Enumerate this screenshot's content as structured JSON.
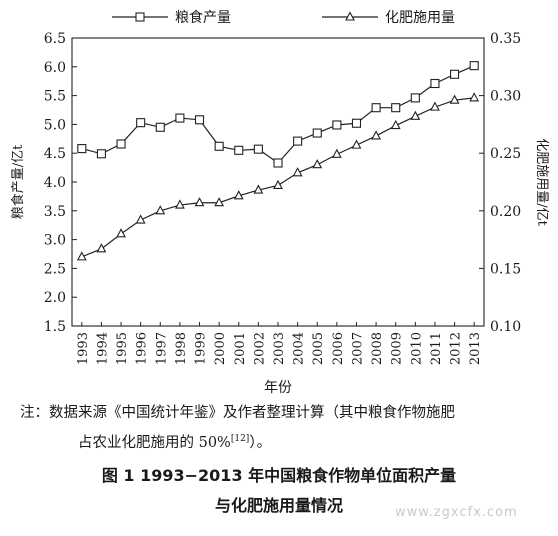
{
  "chart_data": {
    "type": "line",
    "categories": [
      "1993",
      "1994",
      "1995",
      "1996",
      "1997",
      "1998",
      "1999",
      "2000",
      "2001",
      "2002",
      "2003",
      "2004",
      "2005",
      "2006",
      "2007",
      "2008",
      "2009",
      "2010",
      "2011",
      "2012",
      "2013"
    ],
    "series": [
      {
        "name": "粮食产量",
        "axis": "left",
        "marker": "square",
        "values": [
          4.58,
          4.49,
          4.66,
          5.03,
          4.95,
          5.11,
          5.08,
          4.62,
          4.55,
          4.57,
          4.33,
          4.71,
          4.85,
          4.99,
          5.02,
          5.29,
          5.29,
          5.46,
          5.71,
          5.87,
          6.02
        ]
      },
      {
        "name": "化肥施用量",
        "axis": "right",
        "marker": "triangle",
        "values": [
          0.16,
          0.167,
          0.18,
          0.192,
          0.2,
          0.205,
          0.207,
          0.207,
          0.213,
          0.218,
          0.222,
          0.233,
          0.24,
          0.249,
          0.257,
          0.265,
          0.274,
          0.282,
          0.29,
          0.296,
          0.298
        ]
      }
    ],
    "y_left": {
      "label": "粮食产量/亿t",
      "min": 1.5,
      "max": 6.5,
      "ticks": [
        "1.5",
        "2.0",
        "2.5",
        "3.0",
        "3.5",
        "4.0",
        "4.5",
        "5.0",
        "5.5",
        "6.0",
        "6.5"
      ]
    },
    "y_right": {
      "label": "化肥施用量/亿t",
      "min": 0.1,
      "max": 0.35,
      "ticks": [
        "0.10",
        "0.15",
        "0.20",
        "0.25",
        "0.30",
        "0.35"
      ]
    },
    "xlabel": "年份",
    "legend_position": "top",
    "grid": false
  },
  "note": {
    "line1": "注：数据来源《中国统计年鉴》及作者整理计算（其中粮食作物施肥",
    "line2": "占农业化肥施用的 50%",
    "ref": "[12]",
    "line2_end": "）。"
  },
  "caption": {
    "line1": "图 1  1993−2013 年中国粮食作物单位面积产量",
    "line2": "与化肥施用量情况"
  },
  "watermark": "www.zgxcfx.com"
}
